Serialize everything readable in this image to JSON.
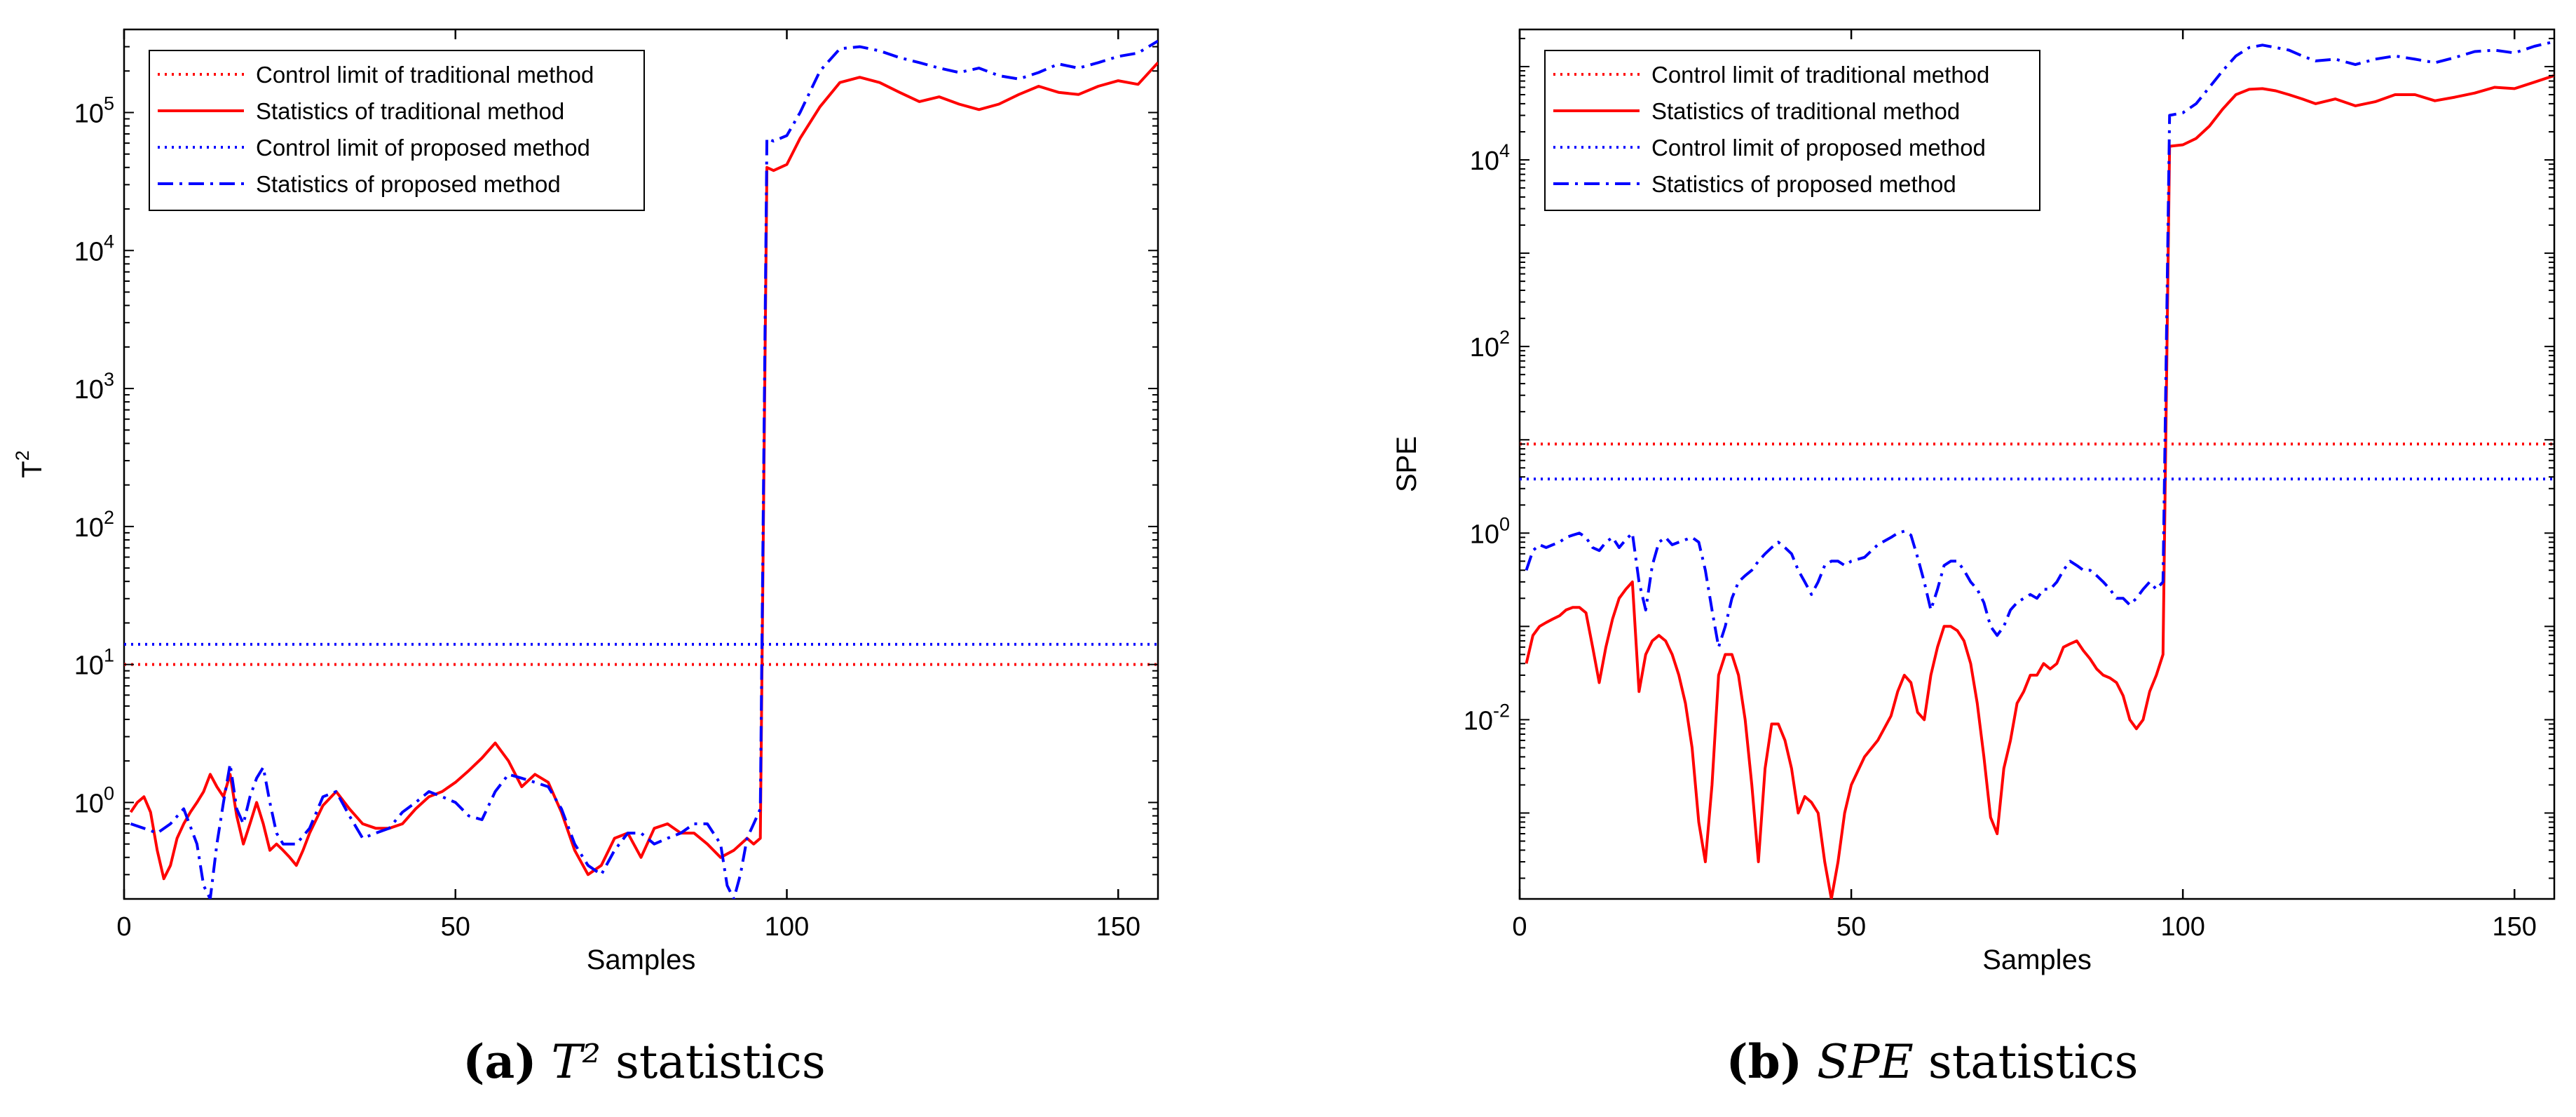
{
  "colors": {
    "red": "#ff0000",
    "blue": "#0000ff",
    "axis": "#000000",
    "legend_border": "#000000"
  },
  "legend_labels": [
    "Control limit of traditional method",
    "Statistics of traditional method",
    "Control limit of proposed method",
    "Statistics of proposed method"
  ],
  "chart_data": [
    {
      "type": "line",
      "title": "",
      "xlabel": "Samples",
      "ylabel": "T²",
      "ylabel_base": "T",
      "ylabel_sup": "2",
      "yscale": "log",
      "xlim": [
        0,
        156
      ],
      "ylim": [
        0.2,
        400000
      ],
      "xticks": [
        0,
        50,
        100,
        150
      ],
      "yticks": [
        {
          "value": 1,
          "base": "10",
          "exp": "0"
        },
        {
          "value": 10,
          "base": "10",
          "exp": "1"
        },
        {
          "value": 100,
          "base": "10",
          "exp": "2"
        },
        {
          "value": 1000,
          "base": "10",
          "exp": "3"
        },
        {
          "value": 10000,
          "base": "10",
          "exp": "4"
        },
        {
          "value": 100000,
          "base": "10",
          "exp": "5"
        }
      ],
      "legend_position": "top-left",
      "series": [
        {
          "name": "Control limit of traditional method",
          "style": "dotted",
          "color": "#ff0000",
          "constant": 10
        },
        {
          "name": "Statistics of traditional method",
          "style": "solid",
          "color": "#ff0000",
          "x": [
            1,
            2,
            3,
            4,
            5,
            6,
            7,
            8,
            9,
            10,
            11,
            12,
            13,
            14,
            15,
            16,
            17,
            18,
            19,
            20,
            21,
            22,
            23,
            24,
            25,
            26,
            27,
            28,
            30,
            32,
            34,
            36,
            38,
            40,
            42,
            44,
            46,
            48,
            50,
            52,
            54,
            56,
            58,
            60,
            62,
            64,
            66,
            68,
            70,
            72,
            74,
            76,
            78,
            80,
            82,
            84,
            86,
            88,
            90,
            92,
            94,
            95,
            96,
            97,
            98,
            100,
            102,
            105,
            108,
            111,
            114,
            117,
            120,
            123,
            126,
            129,
            132,
            135,
            138,
            141,
            144,
            147,
            150,
            153,
            156
          ],
          "y": [
            0.85,
            1.0,
            1.1,
            0.85,
            0.45,
            0.28,
            0.35,
            0.55,
            0.7,
            0.85,
            1.0,
            1.2,
            1.6,
            1.3,
            1.1,
            1.6,
            0.8,
            0.5,
            0.7,
            1.0,
            0.7,
            0.45,
            0.5,
            0.45,
            0.4,
            0.35,
            0.45,
            0.6,
            0.95,
            1.2,
            0.9,
            0.7,
            0.65,
            0.65,
            0.7,
            0.9,
            1.1,
            1.2,
            1.4,
            1.7,
            2.1,
            2.7,
            2.0,
            1.3,
            1.6,
            1.4,
            0.85,
            0.45,
            0.3,
            0.35,
            0.55,
            0.6,
            0.4,
            0.65,
            0.7,
            0.6,
            0.6,
            0.5,
            0.4,
            0.45,
            0.55,
            0.5,
            0.55,
            40000,
            38000,
            42000,
            65000,
            110000,
            165000,
            180000,
            165000,
            140000,
            120000,
            130000,
            115000,
            105000,
            115000,
            135000,
            155000,
            140000,
            135000,
            155000,
            170000,
            160000,
            230000
          ]
        },
        {
          "name": "Control limit of proposed method",
          "style": "dotted",
          "color": "#0000ff",
          "constant": 14
        },
        {
          "name": "Statistics of proposed method",
          "style": "dashdot",
          "color": "#0000ff",
          "x": [
            1,
            3,
            5,
            7,
            9,
            11,
            12,
            13,
            14,
            15,
            16,
            17,
            18,
            19,
            20,
            21,
            22,
            23,
            24,
            26,
            28,
            30,
            32,
            34,
            36,
            38,
            40,
            42,
            44,
            46,
            48,
            50,
            52,
            54,
            56,
            58,
            60,
            62,
            64,
            66,
            68,
            70,
            72,
            74,
            76,
            78,
            80,
            82,
            84,
            86,
            88,
            90,
            91,
            92,
            93,
            94,
            95,
            96,
            97,
            98,
            100,
            102,
            105,
            108,
            111,
            114,
            117,
            120,
            123,
            126,
            129,
            132,
            135,
            138,
            141,
            144,
            147,
            150,
            153,
            156
          ],
          "y": [
            0.7,
            0.65,
            0.6,
            0.7,
            0.9,
            0.5,
            0.25,
            0.2,
            0.5,
            1.0,
            1.9,
            0.9,
            0.7,
            1.1,
            1.5,
            1.8,
            1.0,
            0.6,
            0.5,
            0.5,
            0.65,
            1.1,
            1.2,
            0.8,
            0.55,
            0.6,
            0.65,
            0.85,
            1.0,
            1.2,
            1.1,
            1.0,
            0.8,
            0.75,
            1.2,
            1.6,
            1.5,
            1.4,
            1.3,
            0.9,
            0.5,
            0.35,
            0.3,
            0.45,
            0.6,
            0.6,
            0.5,
            0.55,
            0.6,
            0.7,
            0.7,
            0.5,
            0.25,
            0.2,
            0.3,
            0.55,
            0.7,
            0.9,
            65000,
            62000,
            68000,
            100000,
            200000,
            290000,
            300000,
            280000,
            250000,
            230000,
            210000,
            195000,
            210000,
            185000,
            175000,
            195000,
            225000,
            210000,
            230000,
            255000,
            270000,
            330000
          ]
        }
      ]
    },
    {
      "type": "line",
      "title": "",
      "xlabel": "Samples",
      "ylabel": "SPE",
      "yscale": "log",
      "xlim": [
        0,
        156
      ],
      "ylim": [
        0.00012,
        250000
      ],
      "xticks": [
        0,
        50,
        100,
        150
      ],
      "yticks": [
        {
          "value": 0.01,
          "base": "10",
          "exp": "-2"
        },
        {
          "value": 1,
          "base": "10",
          "exp": "0"
        },
        {
          "value": 100,
          "base": "10",
          "exp": "2"
        },
        {
          "value": 10000,
          "base": "10",
          "exp": "4"
        }
      ],
      "legend_position": "top-left",
      "series": [
        {
          "name": "Control limit of traditional method",
          "style": "dotted",
          "color": "#ff0000",
          "constant": 9
        },
        {
          "name": "Statistics of traditional method",
          "style": "solid",
          "color": "#ff0000",
          "x": [
            1,
            2,
            3,
            4,
            5,
            6,
            7,
            8,
            9,
            10,
            11,
            12,
            13,
            14,
            15,
            16,
            17,
            18,
            19,
            20,
            21,
            22,
            23,
            24,
            25,
            26,
            27,
            28,
            29,
            30,
            31,
            32,
            33,
            34,
            35,
            36,
            37,
            38,
            39,
            40,
            41,
            42,
            43,
            44,
            45,
            46,
            47,
            48,
            49,
            50,
            52,
            54,
            56,
            57,
            58,
            59,
            60,
            61,
            62,
            63,
            64,
            65,
            66,
            67,
            68,
            69,
            70,
            71,
            72,
            73,
            74,
            75,
            76,
            77,
            78,
            79,
            80,
            81,
            82,
            83,
            84,
            85,
            86,
            87,
            88,
            89,
            90,
            91,
            92,
            93,
            94,
            95,
            96,
            97,
            98,
            100,
            102,
            104,
            106,
            108,
            110,
            112,
            114,
            116,
            118,
            120,
            123,
            126,
            129,
            132,
            135,
            138,
            141,
            144,
            147,
            150,
            153,
            156
          ],
          "y": [
            0.04,
            0.08,
            0.1,
            0.11,
            0.12,
            0.13,
            0.15,
            0.16,
            0.16,
            0.14,
            0.06,
            0.025,
            0.06,
            0.12,
            0.2,
            0.25,
            0.3,
            0.02,
            0.05,
            0.07,
            0.08,
            0.07,
            0.05,
            0.03,
            0.015,
            0.005,
            0.0008,
            0.0003,
            0.002,
            0.03,
            0.05,
            0.05,
            0.03,
            0.01,
            0.002,
            0.0003,
            0.003,
            0.009,
            0.009,
            0.006,
            0.003,
            0.001,
            0.0015,
            0.0013,
            0.001,
            0.0003,
            0.00012,
            0.0003,
            0.001,
            0.002,
            0.004,
            0.006,
            0.011,
            0.02,
            0.03,
            0.025,
            0.012,
            0.01,
            0.03,
            0.06,
            0.1,
            0.1,
            0.09,
            0.07,
            0.04,
            0.015,
            0.004,
            0.0009,
            0.0006,
            0.003,
            0.006,
            0.015,
            0.02,
            0.03,
            0.03,
            0.04,
            0.035,
            0.04,
            0.06,
            0.065,
            0.07,
            0.055,
            0.045,
            0.035,
            0.03,
            0.028,
            0.025,
            0.018,
            0.01,
            0.008,
            0.01,
            0.02,
            0.03,
            0.05,
            14000,
            14500,
            17000,
            23000,
            35000,
            50000,
            57000,
            58000,
            55000,
            50000,
            45000,
            40000,
            45000,
            38000,
            42000,
            50000,
            50000,
            43000,
            47000,
            52000,
            60000,
            58000,
            68000,
            80000
          ]
        },
        {
          "name": "Control limit of proposed method",
          "style": "dotted",
          "color": "#0000ff",
          "constant": 3.8
        },
        {
          "name": "Statistics of proposed method",
          "style": "dashdot",
          "color": "#0000ff",
          "x": [
            1,
            2,
            3,
            4,
            5,
            6,
            7,
            8,
            9,
            10,
            11,
            12,
            13,
            14,
            15,
            16,
            17,
            18,
            19,
            20,
            21,
            22,
            23,
            24,
            25,
            26,
            27,
            28,
            29,
            30,
            31,
            32,
            33,
            34,
            35,
            36,
            37,
            38,
            39,
            40,
            41,
            42,
            43,
            44,
            45,
            46,
            47,
            48,
            49,
            50,
            52,
            54,
            56,
            57,
            58,
            59,
            60,
            61,
            62,
            63,
            64,
            65,
            66,
            67,
            68,
            69,
            70,
            71,
            72,
            73,
            74,
            75,
            76,
            77,
            78,
            79,
            80,
            81,
            82,
            83,
            84,
            85,
            86,
            87,
            88,
            89,
            90,
            91,
            92,
            93,
            94,
            95,
            96,
            97,
            98,
            100,
            102,
            104,
            106,
            108,
            110,
            112,
            114,
            116,
            118,
            120,
            123,
            126,
            129,
            132,
            135,
            138,
            141,
            144,
            147,
            150,
            153,
            156
          ],
          "y": [
            0.4,
            0.65,
            0.75,
            0.7,
            0.75,
            0.8,
            0.9,
            0.95,
            1.0,
            0.9,
            0.7,
            0.65,
            0.8,
            0.9,
            0.7,
            0.85,
            1.0,
            0.3,
            0.15,
            0.45,
            0.8,
            0.9,
            0.75,
            0.8,
            0.85,
            0.9,
            0.8,
            0.4,
            0.15,
            0.06,
            0.1,
            0.2,
            0.3,
            0.35,
            0.4,
            0.5,
            0.6,
            0.7,
            0.8,
            0.7,
            0.6,
            0.4,
            0.3,
            0.22,
            0.3,
            0.45,
            0.5,
            0.5,
            0.45,
            0.5,
            0.55,
            0.75,
            0.9,
            1.0,
            1.05,
            0.95,
            0.55,
            0.3,
            0.15,
            0.25,
            0.45,
            0.5,
            0.5,
            0.4,
            0.3,
            0.25,
            0.18,
            0.1,
            0.08,
            0.1,
            0.15,
            0.18,
            0.2,
            0.22,
            0.2,
            0.25,
            0.25,
            0.3,
            0.4,
            0.5,
            0.45,
            0.4,
            0.4,
            0.35,
            0.3,
            0.25,
            0.2,
            0.2,
            0.17,
            0.2,
            0.25,
            0.3,
            0.25,
            0.3,
            30000,
            32000,
            40000,
            60000,
            90000,
            130000,
            160000,
            170000,
            160000,
            150000,
            130000,
            115000,
            120000,
            105000,
            120000,
            130000,
            120000,
            110000,
            125000,
            145000,
            150000,
            140000,
            165000,
            185000
          ]
        }
      ]
    }
  ],
  "captions": [
    {
      "tag": "(a)",
      "symbol": "T²",
      "text": "statistics"
    },
    {
      "tag": "(b)",
      "symbol": "SPE",
      "text": "statistics"
    }
  ]
}
